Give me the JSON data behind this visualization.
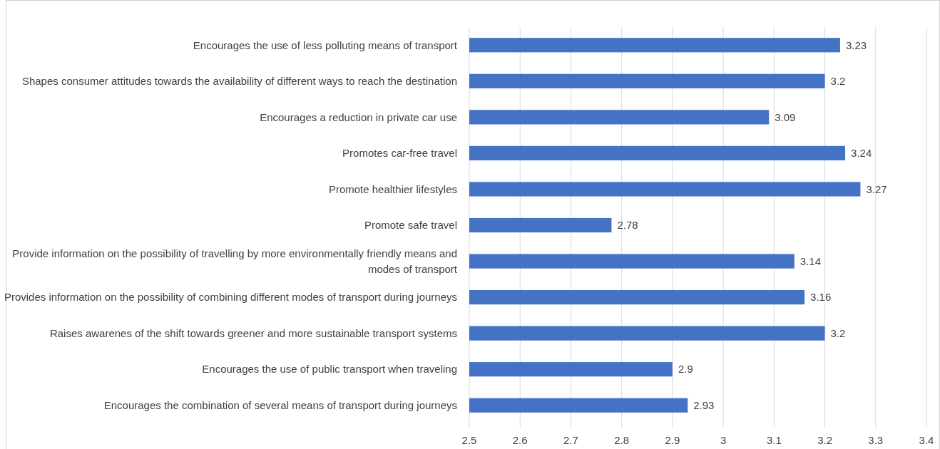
{
  "chart_data": {
    "type": "bar",
    "orientation": "horizontal",
    "categories": [
      "Encourages the use of less polluting means of transport",
      "Shapes consumer attitudes towards the availability of different ways to reach the destination",
      "Encourages a reduction in private car use",
      "Promotes car-free travel",
      "Promote healthier lifestyles",
      "Promote safe travel",
      "Provide information on the possibility of travelling by more environmentally friendly means and modes of transport",
      "Provides information on the possibility of combining different modes of transport during journeys",
      "Raises awarenes of the shift towards greener and more sustainable transport systems",
      "Encourages the use of public transport when traveling",
      "Encourages the combination of several means of transport during journeys"
    ],
    "values": [
      3.23,
      3.2,
      3.09,
      3.24,
      3.27,
      2.78,
      3.14,
      3.16,
      3.2,
      2.9,
      2.93
    ],
    "color": "#4472c4",
    "xlim": [
      2.5,
      3.4
    ],
    "xticks": [
      2.5,
      2.6,
      2.7,
      2.8,
      2.9,
      3,
      3.1,
      3.2,
      3.3,
      3.4
    ],
    "grid": "x",
    "data_labels": true
  }
}
